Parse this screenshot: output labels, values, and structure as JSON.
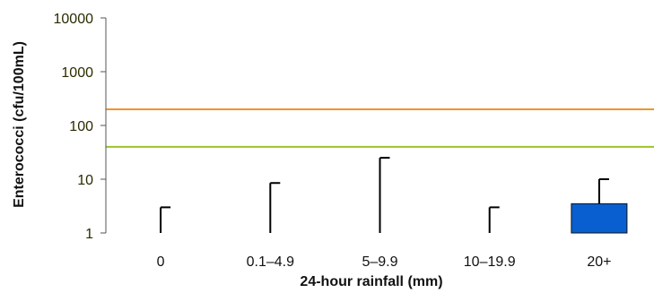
{
  "chart_data": {
    "type": "bar",
    "categories": [
      "0",
      "0.1–4.9",
      "5–9.9",
      "10–19.9",
      "20+"
    ],
    "values": [
      1,
      1,
      1,
      1,
      3.5
    ],
    "error_upper": [
      3,
      8.5,
      25,
      3,
      10
    ],
    "xlabel": "24-hour rainfall (mm)",
    "ylabel": "Enterococci (cfu/100mL)",
    "yscale": "log",
    "ylim": [
      1,
      10000
    ],
    "yticks": [
      "1",
      "10",
      "100",
      "1000",
      "10000"
    ],
    "reference_lines": [
      {
        "value": 200,
        "color": "#f0952a"
      },
      {
        "value": 40,
        "color": "#9cc42a"
      }
    ],
    "bar_color": "#0a5fd0",
    "grid": false
  }
}
